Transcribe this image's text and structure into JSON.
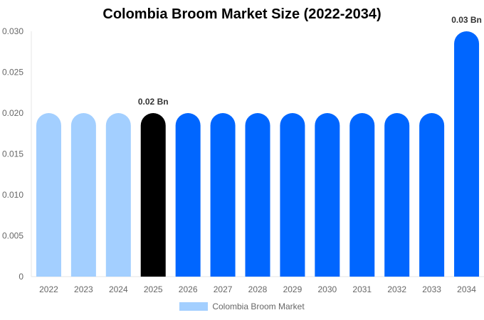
{
  "chart_data": {
    "type": "bar",
    "title": "Colombia Broom Market Size (2022-2034)",
    "categories": [
      "2022",
      "2023",
      "2024",
      "2025",
      "2026",
      "2027",
      "2028",
      "2029",
      "2030",
      "2031",
      "2032",
      "2033",
      "2034"
    ],
    "series": [
      {
        "name": "Colombia Broom Market",
        "values": [
          0.02,
          0.02,
          0.02,
          0.02,
          0.02,
          0.02,
          0.02,
          0.02,
          0.02,
          0.02,
          0.02,
          0.02,
          0.03
        ]
      }
    ],
    "ylim": [
      0,
      0.03
    ],
    "yticks": [
      "0",
      "0.005",
      "0.010",
      "0.015",
      "0.020",
      "0.025",
      "0.030"
    ],
    "data_labels": [
      {
        "category": "2025",
        "text": "0.02 Bn"
      },
      {
        "category": "2034",
        "text": "0.03 Bn"
      }
    ],
    "bar_colors": {
      "historical": "#a3cfff",
      "base_year": "#000000",
      "forecast": "#0066ff"
    },
    "historical_years": [
      "2022",
      "2023",
      "2024"
    ],
    "base_year": "2025",
    "legend_color": "#a3cfff",
    "legend_position": "bottom-center",
    "grid": false
  }
}
